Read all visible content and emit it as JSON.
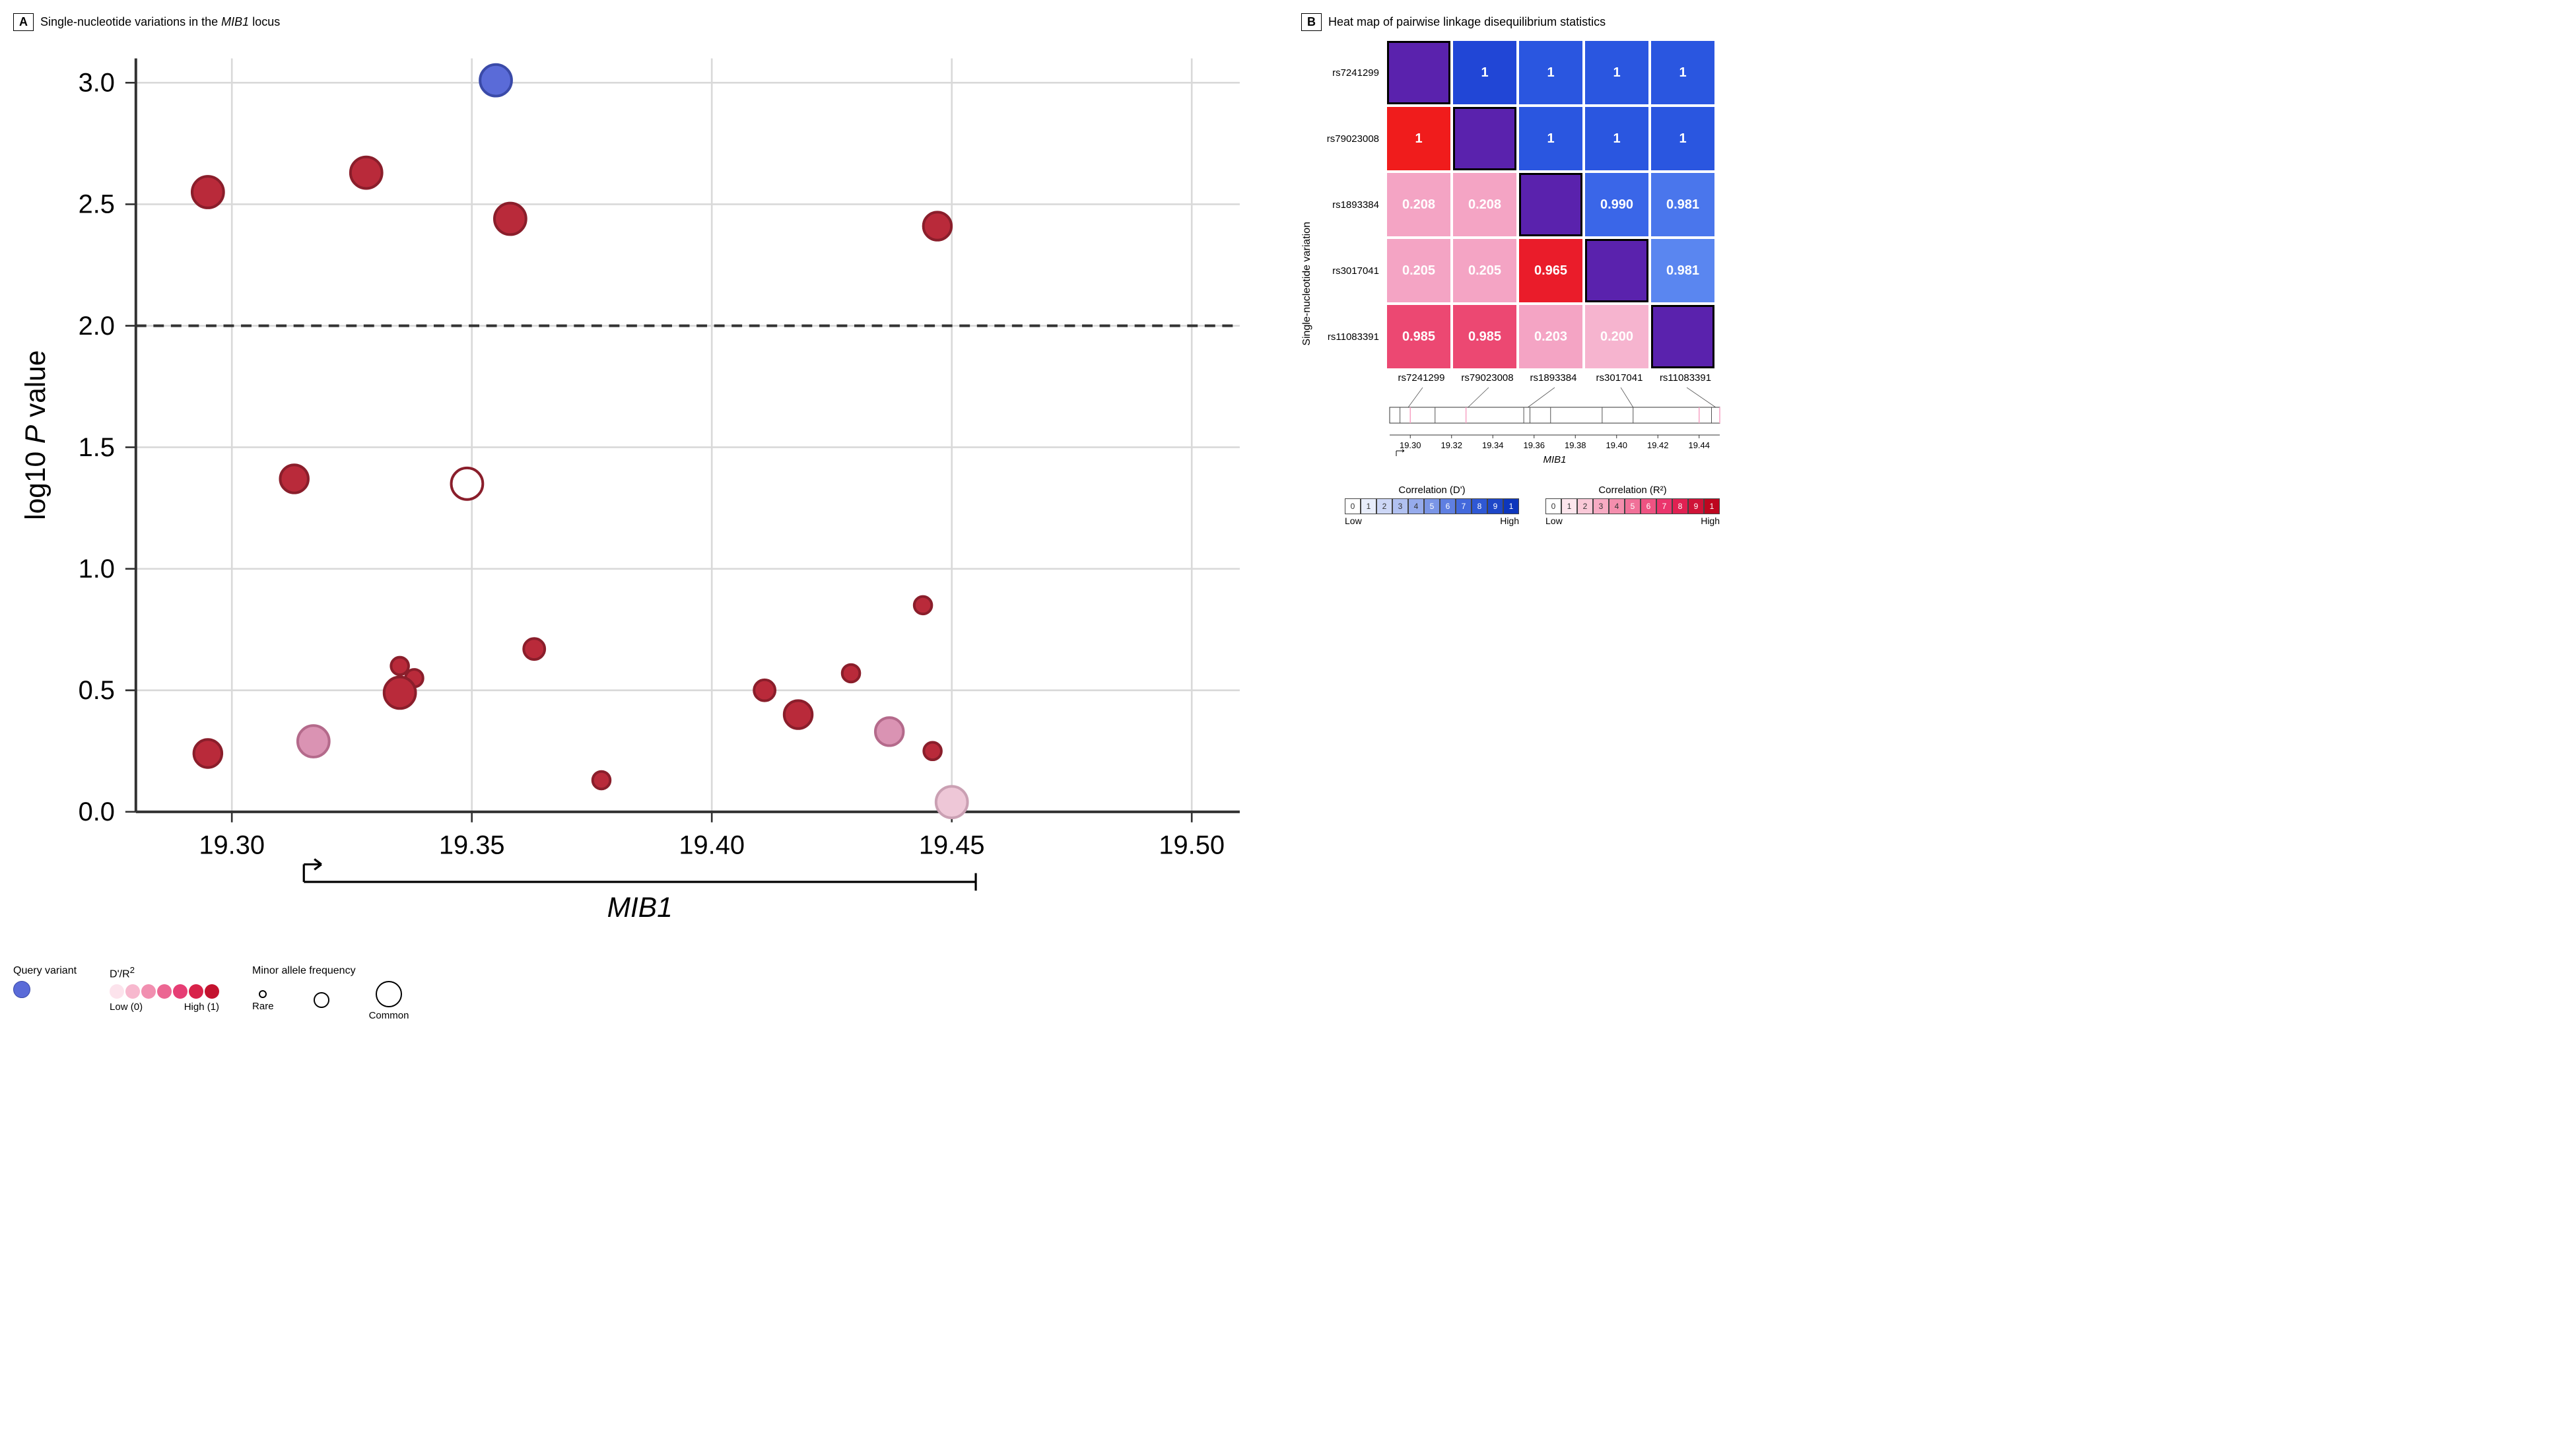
{
  "panelA": {
    "label": "A",
    "title_prefix": "Single-nucleotide variations in the ",
    "title_em": "MIB1",
    "title_suffix": " locus",
    "chart": {
      "type": "scatter",
      "xlim": [
        19.28,
        19.51
      ],
      "ylim": [
        0,
        3.1
      ],
      "xticks": [
        19.3,
        19.35,
        19.4,
        19.45,
        19.5
      ],
      "yticks": [
        0,
        0.5,
        1.0,
        1.5,
        2.0,
        2.5,
        3.0
      ],
      "ylabel_prefix": "log10 ",
      "ylabel_em": "P",
      "ylabel_suffix": " value",
      "gene_label": "MIB1",
      "gene_start": 19.315,
      "gene_end": 19.455,
      "threshold_y": 2.0,
      "grid_color": "#d9d9d9",
      "axis_color": "#333333",
      "background": "#ffffff",
      "query_color": "#5a6bd8",
      "points": [
        {
          "x": 19.295,
          "y": 2.55,
          "r": 9,
          "fill": "#b92a3a",
          "stroke": "#8a1e2b"
        },
        {
          "x": 19.328,
          "y": 2.63,
          "r": 9,
          "fill": "#b92a3a",
          "stroke": "#8a1e2b"
        },
        {
          "x": 19.355,
          "y": 3.01,
          "r": 9,
          "fill": "#5a6bd8",
          "stroke": "#3a4aa8"
        },
        {
          "x": 19.358,
          "y": 2.44,
          "r": 9,
          "fill": "#b92a3a",
          "stroke": "#8a1e2b"
        },
        {
          "x": 19.447,
          "y": 2.41,
          "r": 8,
          "fill": "#b92a3a",
          "stroke": "#8a1e2b"
        },
        {
          "x": 19.313,
          "y": 1.37,
          "r": 8,
          "fill": "#b92a3a",
          "stroke": "#8a1e2b"
        },
        {
          "x": 19.349,
          "y": 1.35,
          "r": 9,
          "fill": "#ffffff",
          "stroke": "#8a1e2b"
        },
        {
          "x": 19.295,
          "y": 0.24,
          "r": 8,
          "fill": "#b92a3a",
          "stroke": "#8a1e2b"
        },
        {
          "x": 19.317,
          "y": 0.29,
          "r": 9,
          "fill": "#da93b3",
          "stroke": "#b46a8b"
        },
        {
          "x": 19.335,
          "y": 0.6,
          "r": 5,
          "fill": "#b92a3a",
          "stroke": "#8a1e2b"
        },
        {
          "x": 19.338,
          "y": 0.55,
          "r": 5,
          "fill": "#b92a3a",
          "stroke": "#8a1e2b"
        },
        {
          "x": 19.335,
          "y": 0.49,
          "r": 9,
          "fill": "#b92a3a",
          "stroke": "#8a1e2b"
        },
        {
          "x": 19.363,
          "y": 0.67,
          "r": 6,
          "fill": "#b92a3a",
          "stroke": "#8a1e2b"
        },
        {
          "x": 19.377,
          "y": 0.13,
          "r": 5,
          "fill": "#b92a3a",
          "stroke": "#8a1e2b"
        },
        {
          "x": 19.411,
          "y": 0.5,
          "r": 6,
          "fill": "#b92a3a",
          "stroke": "#8a1e2b"
        },
        {
          "x": 19.418,
          "y": 0.4,
          "r": 8,
          "fill": "#b92a3a",
          "stroke": "#8a1e2b"
        },
        {
          "x": 19.429,
          "y": 0.57,
          "r": 5,
          "fill": "#b92a3a",
          "stroke": "#8a1e2b"
        },
        {
          "x": 19.437,
          "y": 0.33,
          "r": 8,
          "fill": "#da93b3",
          "stroke": "#b46a8b"
        },
        {
          "x": 19.444,
          "y": 0.85,
          "r": 5,
          "fill": "#b92a3a",
          "stroke": "#8a1e2b"
        },
        {
          "x": 19.446,
          "y": 0.25,
          "r": 5,
          "fill": "#b92a3a",
          "stroke": "#8a1e2b"
        },
        {
          "x": 19.45,
          "y": 0.04,
          "r": 9,
          "fill": "#eec7d7",
          "stroke": "#caa0b3"
        }
      ]
    },
    "legend": {
      "query_label": "Query variant",
      "dpr_label": "D'/R",
      "dpr_low": "Low (0)",
      "dpr_high": "High (1)",
      "dpr_colors": [
        "#fce3ec",
        "#f7b8ce",
        "#f18fb0",
        "#ec6692",
        "#e63d74",
        "#d82249",
        "#c3122e"
      ],
      "maf_label": "Minor allele frequency",
      "maf_rare": "Rare",
      "maf_common": "Common",
      "maf_sizes": [
        12,
        24,
        40
      ]
    }
  },
  "panelB": {
    "label": "B",
    "title": "Heat map of pairwise linkage disequilibrium statistics",
    "ylabel": "Single-nucleotide variation",
    "snvs": [
      "rs7241299",
      "rs79023008",
      "rs1893384",
      "rs3017041",
      "rs11083391"
    ],
    "diag_color": "#5a22ad",
    "cells": [
      [
        null,
        {
          "v": "1",
          "c": "#2146d6"
        },
        {
          "v": "1",
          "c": "#2a56e0"
        },
        {
          "v": "1",
          "c": "#2a56e0"
        },
        {
          "v": "1",
          "c": "#2a56e0"
        }
      ],
      [
        {
          "v": "1",
          "c": "#f01c1c"
        },
        null,
        {
          "v": "1",
          "c": "#2a56e0"
        },
        {
          "v": "1",
          "c": "#2a56e0"
        },
        {
          "v": "1",
          "c": "#2a56e0"
        }
      ],
      [
        {
          "v": "0.208",
          "c": "#f4a4c4"
        },
        {
          "v": "0.208",
          "c": "#f4a4c4"
        },
        null,
        {
          "v": "0.990",
          "c": "#3a66e8"
        },
        {
          "v": "0.981",
          "c": "#4a76ec"
        }
      ],
      [
        {
          "v": "0.205",
          "c": "#f4a4c4"
        },
        {
          "v": "0.205",
          "c": "#f4a4c4"
        },
        {
          "v": "0.965",
          "c": "#ea1c2a"
        },
        null,
        {
          "v": "0.981",
          "c": "#5a86f0"
        }
      ],
      [
        {
          "v": "0.985",
          "c": "#ec4872"
        },
        {
          "v": "0.985",
          "c": "#ec4872"
        },
        {
          "v": "0.203",
          "c": "#f4a4c4"
        },
        {
          "v": "0.200",
          "c": "#f6b4cf"
        },
        null
      ]
    ],
    "track": {
      "xlim": [
        19.29,
        19.45
      ],
      "xticks": [
        19.3,
        19.32,
        19.34,
        19.36,
        19.38,
        19.4,
        19.42,
        19.44
      ],
      "gene_label": "MIB1",
      "snv_pos": [
        19.299,
        19.328,
        19.357,
        19.408,
        19.448
      ],
      "tick_lines": [
        19.295,
        19.3,
        19.312,
        19.327,
        19.355,
        19.358,
        19.368,
        19.393,
        19.408,
        19.44,
        19.446,
        19.45
      ],
      "pink_lines": [
        19.3,
        19.327,
        19.44,
        19.45
      ]
    },
    "corr_d": {
      "title": "Correlation (D')",
      "labels": [
        "0",
        "1",
        "2",
        "3",
        "4",
        "5",
        "6",
        "7",
        "8",
        "9",
        "1"
      ],
      "colors": [
        "#ffffff",
        "#e8edfb",
        "#cdd7f6",
        "#b1c1f1",
        "#96abec",
        "#7a95e6",
        "#5f7fe1",
        "#4369dc",
        "#2f58d4",
        "#1e47c8",
        "#0d36bc"
      ],
      "text_colors": [
        "#333",
        "#333",
        "#333",
        "#333",
        "#333",
        "#fff",
        "#fff",
        "#fff",
        "#fff",
        "#fff",
        "#fff"
      ],
      "low": "Low",
      "high": "High"
    },
    "corr_r2": {
      "title": "Correlation (R²)",
      "labels": [
        "0",
        "1",
        "2",
        "3",
        "4",
        "5",
        "6",
        "7",
        "8",
        "9",
        "1"
      ],
      "colors": [
        "#ffffff",
        "#fde6ed",
        "#fac9d8",
        "#f7abc3",
        "#f48ead",
        "#f17098",
        "#ee5382",
        "#eb356d",
        "#e02152",
        "#cf1338",
        "#bd061f"
      ],
      "text_colors": [
        "#333",
        "#333",
        "#333",
        "#333",
        "#333",
        "#fff",
        "#fff",
        "#fff",
        "#fff",
        "#fff",
        "#fff"
      ],
      "low": "Low",
      "high": "High"
    }
  }
}
